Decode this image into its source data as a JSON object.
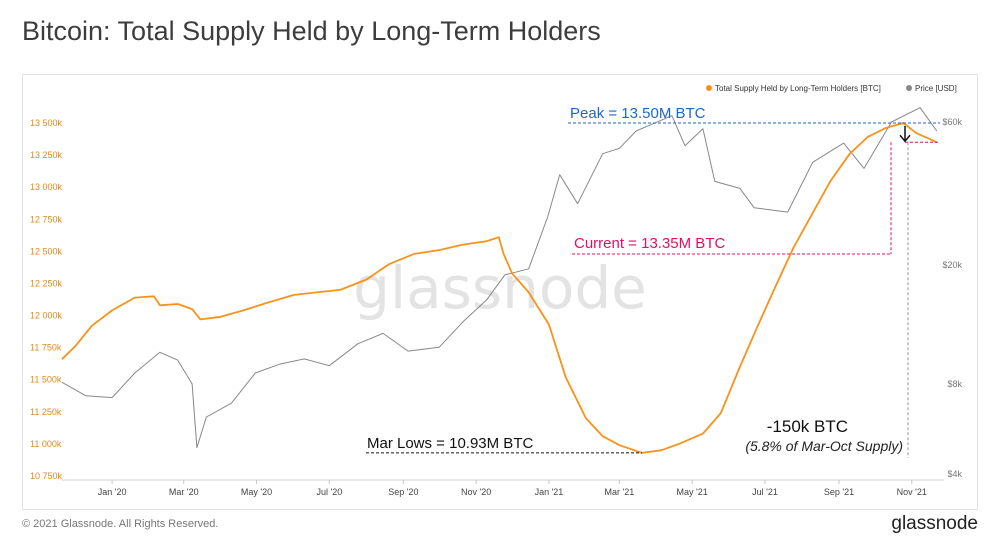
{
  "title": "Bitcoin: Total Supply Held by Long-Term Holders",
  "footer": {
    "copyright": "© 2021 Glassnode. All Rights Reserved.",
    "logo": "glassnode"
  },
  "watermark": "glassnode",
  "colors": {
    "lth": "#f7931a",
    "price": "#888888",
    "peak": "#1e66c8",
    "current": "#e0115f",
    "lows": "#111111"
  },
  "annotations": {
    "peak": "Peak = 13.50M BTC",
    "current": "Current = 13.35M BTC",
    "lows": "Mar Lows = 10.93M BTC",
    "drop": "-150k BTC",
    "drop_note": "(5.8% of Mar-Oct Supply)"
  },
  "chart_data": {
    "type": "line",
    "title": "Bitcoin: Total Supply Held by Long-Term Holders",
    "legend": [
      "Total Supply Held by Long-Term Holders [BTC]",
      "Price [USD]"
    ],
    "legend_position": "top-right",
    "grid": false,
    "x_ticks": [
      "Jan '20",
      "Mar '20",
      "May '20",
      "Jul '20",
      "Sep '20",
      "Nov '20",
      "Jan '21",
      "Mar '21",
      "May '21",
      "Jul '21",
      "Sep '21",
      "Nov '21"
    ],
    "y_left_ticks": [
      "10 750k",
      "11 000k",
      "11 250k",
      "11 500k",
      "11 750k",
      "12 000k",
      "12 250k",
      "12 500k",
      "12 750k",
      "13 000k",
      "13 250k",
      "13 500k"
    ],
    "y_left_range": [
      10750000,
      13500000
    ],
    "y_right_ticks": [
      "$4k",
      "$8k",
      "$20k",
      "$60k"
    ],
    "y_right_scale": "log",
    "series": [
      {
        "name": "Total Supply Held by Long-Term Holders [BTC]",
        "axis": "left",
        "points": [
          [
            "2019-11-20",
            11660000
          ],
          [
            "2019-12-01",
            11760000
          ],
          [
            "2019-12-15",
            11920000
          ],
          [
            "2020-01-01",
            12040000
          ],
          [
            "2020-01-20",
            12140000
          ],
          [
            "2020-02-05",
            12150000
          ],
          [
            "2020-02-10",
            12080000
          ],
          [
            "2020-02-25",
            12090000
          ],
          [
            "2020-03-08",
            12050000
          ],
          [
            "2020-03-15",
            11970000
          ],
          [
            "2020-04-01",
            11990000
          ],
          [
            "2020-04-20",
            12040000
          ],
          [
            "2020-05-10",
            12100000
          ],
          [
            "2020-06-01",
            12160000
          ],
          [
            "2020-06-20",
            12180000
          ],
          [
            "2020-07-10",
            12200000
          ],
          [
            "2020-08-01",
            12280000
          ],
          [
            "2020-08-20",
            12400000
          ],
          [
            "2020-09-10",
            12480000
          ],
          [
            "2020-10-01",
            12510000
          ],
          [
            "2020-10-20",
            12550000
          ],
          [
            "2020-11-10",
            12580000
          ],
          [
            "2020-11-20",
            12610000
          ],
          [
            "2020-11-24",
            12480000
          ],
          [
            "2020-12-01",
            12330000
          ],
          [
            "2020-12-15",
            12180000
          ],
          [
            "2021-01-01",
            11930000
          ],
          [
            "2021-01-15",
            11520000
          ],
          [
            "2021-02-01",
            11200000
          ],
          [
            "2021-02-15",
            11060000
          ],
          [
            "2021-03-01",
            10990000
          ],
          [
            "2021-03-20",
            10930000
          ],
          [
            "2021-04-05",
            10950000
          ],
          [
            "2021-04-20",
            11000000
          ],
          [
            "2021-05-10",
            11080000
          ],
          [
            "2021-05-25",
            11240000
          ],
          [
            "2021-06-10",
            11600000
          ],
          [
            "2021-06-25",
            11920000
          ],
          [
            "2021-07-10",
            12230000
          ],
          [
            "2021-07-25",
            12530000
          ],
          [
            "2021-08-10",
            12800000
          ],
          [
            "2021-08-25",
            13050000
          ],
          [
            "2021-09-10",
            13260000
          ],
          [
            "2021-09-25",
            13390000
          ],
          [
            "2021-10-10",
            13460000
          ],
          [
            "2021-10-25",
            13500000
          ],
          [
            "2021-11-05",
            13420000
          ],
          [
            "2021-11-15",
            13380000
          ],
          [
            "2021-11-22",
            13350000
          ]
        ]
      },
      {
        "name": "Price [USD]",
        "axis": "right",
        "points": [
          [
            "2019-11-20",
            8100
          ],
          [
            "2019-12-10",
            7300
          ],
          [
            "2020-01-01",
            7200
          ],
          [
            "2020-01-20",
            8700
          ],
          [
            "2020-02-10",
            10200
          ],
          [
            "2020-02-25",
            9600
          ],
          [
            "2020-03-08",
            8000
          ],
          [
            "2020-03-12",
            4900
          ],
          [
            "2020-03-20",
            6200
          ],
          [
            "2020-04-10",
            6900
          ],
          [
            "2020-04-30",
            8700
          ],
          [
            "2020-05-20",
            9300
          ],
          [
            "2020-06-10",
            9700
          ],
          [
            "2020-07-01",
            9200
          ],
          [
            "2020-07-25",
            10900
          ],
          [
            "2020-08-15",
            11800
          ],
          [
            "2020-09-05",
            10300
          ],
          [
            "2020-10-01",
            10600
          ],
          [
            "2020-10-21",
            12900
          ],
          [
            "2020-11-10",
            15300
          ],
          [
            "2020-11-25",
            18500
          ],
          [
            "2020-12-15",
            19400
          ],
          [
            "2020-12-31",
            29000
          ],
          [
            "2021-01-10",
            40000
          ],
          [
            "2021-01-25",
            32000
          ],
          [
            "2021-02-15",
            47000
          ],
          [
            "2021-03-01",
            49000
          ],
          [
            "2021-03-15",
            56000
          ],
          [
            "2021-04-14",
            63000
          ],
          [
            "2021-04-25",
            50000
          ],
          [
            "2021-05-10",
            57000
          ],
          [
            "2021-05-20",
            38000
          ],
          [
            "2021-06-10",
            36000
          ],
          [
            "2021-06-22",
            31000
          ],
          [
            "2021-07-20",
            30000
          ],
          [
            "2021-08-10",
            44000
          ],
          [
            "2021-09-05",
            51000
          ],
          [
            "2021-09-22",
            42000
          ],
          [
            "2021-10-15",
            60000
          ],
          [
            "2021-11-08",
            67000
          ],
          [
            "2021-11-22",
            56000
          ]
        ]
      }
    ]
  }
}
